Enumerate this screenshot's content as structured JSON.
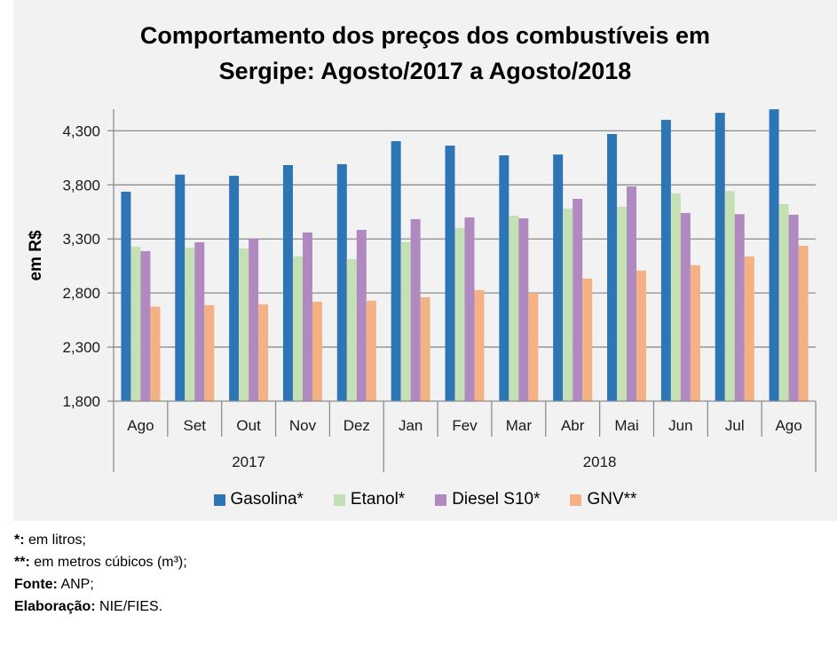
{
  "chart_data": {
    "type": "bar",
    "title": [
      "Comportamento dos preços dos combustíveis em",
      "Sergipe: Agosto/2017 a Agosto/2018"
    ],
    "xlabel": "",
    "ylabel": "em R$",
    "ylim": [
      1.8,
      4.5
    ],
    "yticks": [
      1.8,
      2.3,
      2.8,
      3.3,
      3.8,
      4.3
    ],
    "ytick_labels": [
      "1,800",
      "2,300",
      "2,800",
      "3,300",
      "3,800",
      "4,300"
    ],
    "grid": true,
    "legend_position": "bottom",
    "categories": [
      "Ago",
      "Set",
      "Out",
      "Nov",
      "Dez",
      "Jan",
      "Fev",
      "Mar",
      "Abr",
      "Mai",
      "Jun",
      "Jul",
      "Ago"
    ],
    "category_groups": [
      {
        "label": "2017",
        "count": 5
      },
      {
        "label": "2018",
        "count": 8
      }
    ],
    "series": [
      {
        "name": "Gasolina*",
        "color": "#2e75b6",
        "values": [
          3.737,
          3.895,
          3.884,
          3.983,
          3.991,
          4.204,
          4.163,
          4.073,
          4.081,
          4.27,
          4.401,
          4.466,
          4.499
        ]
      },
      {
        "name": "Etanol*",
        "color": "#c5e0b4",
        "values": [
          3.229,
          3.22,
          3.212,
          3.138,
          3.114,
          3.27,
          3.401,
          3.516,
          3.581,
          3.598,
          3.721,
          3.743,
          3.622
        ]
      },
      {
        "name": "Diesel S10*",
        "color": "#b189c1",
        "values": [
          3.188,
          3.27,
          3.3,
          3.36,
          3.384,
          3.483,
          3.499,
          3.491,
          3.671,
          3.786,
          3.54,
          3.529,
          3.524
        ]
      },
      {
        "name": "GNV**",
        "color": "#f4b183",
        "values": [
          2.674,
          2.688,
          2.696,
          2.72,
          2.729,
          2.761,
          2.827,
          2.8,
          2.934,
          3.007,
          3.057,
          3.138,
          3.237
        ]
      }
    ]
  },
  "notes": [
    {
      "bold": "*:",
      "text": " em litros;"
    },
    {
      "bold": "**:",
      "text": " em metros cúbicos (m³);"
    },
    {
      "bold": "Fonte:",
      "text": " ANP;"
    },
    {
      "bold": "Elaboração:",
      "text": " NIE/FIES."
    }
  ]
}
